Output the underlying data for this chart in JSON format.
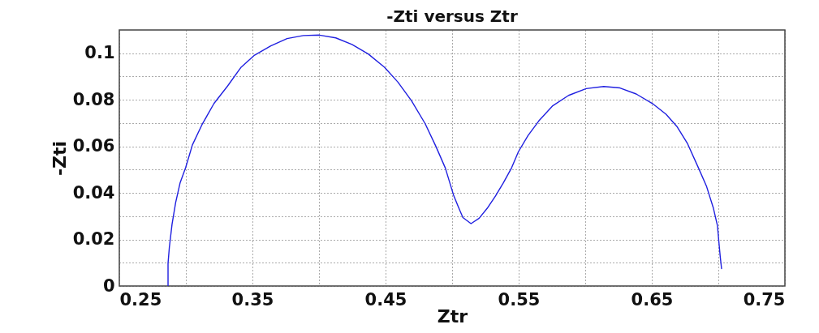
{
  "chart_data": {
    "type": "line",
    "title": "-Zti versus Ztr",
    "xlabel": "Ztr",
    "ylabel": "-Zti",
    "xlim": [
      0.25,
      0.75
    ],
    "ylim": [
      0,
      0.11
    ],
    "xticks": [
      0.25,
      {
        "value": 0.3,
        "label": null
      },
      0.35,
      {
        "value": 0.4,
        "label": null
      },
      0.45,
      {
        "value": 0.5,
        "label": null
      },
      0.55,
      {
        "value": 0.6,
        "label": null
      },
      0.65,
      {
        "value": 0.7,
        "label": null
      },
      0.75
    ],
    "yticks": [
      0,
      {
        "value": 0.01,
        "label": null
      },
      0.02,
      {
        "value": 0.03,
        "label": null
      },
      0.04,
      {
        "value": 0.05,
        "label": null
      },
      0.06,
      {
        "value": 0.07,
        "label": null
      },
      0.08,
      {
        "value": 0.09,
        "label": null
      },
      0.1
    ],
    "grid": true,
    "line_style": "solid",
    "marker": "none",
    "series": [
      {
        "color": "#2020e0",
        "x": [
          0.2866,
          0.2866,
          0.2876,
          0.2896,
          0.2923,
          0.2957,
          0.2998,
          0.3049,
          0.312,
          0.3211,
          0.3313,
          0.3415,
          0.3516,
          0.3638,
          0.376,
          0.3882,
          0.4004,
          0.4126,
          0.4248,
          0.437,
          0.4492,
          0.4593,
          0.4695,
          0.4797,
          0.4878,
          0.4949,
          0.501,
          0.5051,
          0.5081,
          0.5142,
          0.5203,
          0.5264,
          0.5325,
          0.5386,
          0.5447,
          0.5498,
          0.557,
          0.5651,
          0.5753,
          0.5875,
          0.6007,
          0.6139,
          0.6261,
          0.6383,
          0.6505,
          0.6607,
          0.6688,
          0.6769,
          0.6851,
          0.6912,
          0.6963,
          0.6993,
          0.7003,
          0.7014,
          0.7024
        ],
        "values": [
          0,
          0.0098,
          0.0167,
          0.0265,
          0.0358,
          0.0444,
          0.0508,
          0.0606,
          0.0692,
          0.0784,
          0.0859,
          0.094,
          0.0992,
          0.1032,
          0.1063,
          0.1076,
          0.1078,
          0.1066,
          0.1038,
          0.0997,
          0.094,
          0.0876,
          0.0796,
          0.0698,
          0.06,
          0.0507,
          0.0392,
          0.0334,
          0.0294,
          0.0268,
          0.0291,
          0.0334,
          0.0386,
          0.0444,
          0.0508,
          0.0577,
          0.0646,
          0.0709,
          0.0773,
          0.0819,
          0.0848,
          0.0857,
          0.0851,
          0.0825,
          0.0784,
          0.0738,
          0.0686,
          0.0611,
          0.0507,
          0.0427,
          0.0334,
          0.026,
          0.0196,
          0.0127,
          0.0075
        ]
      }
    ]
  }
}
